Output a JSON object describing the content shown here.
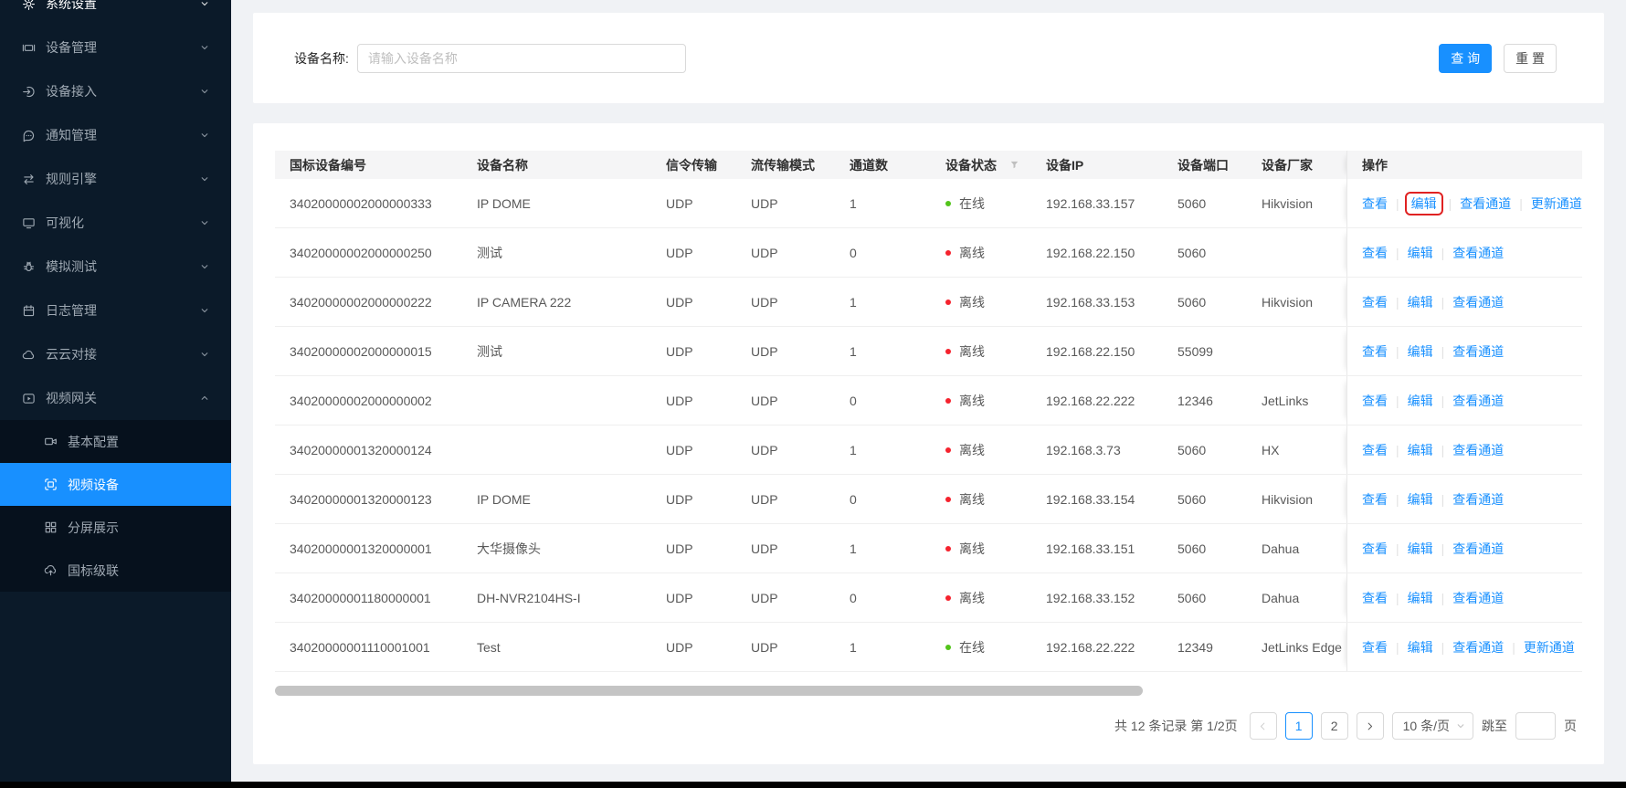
{
  "colors": {
    "accent": "#1890ff",
    "online": "#52c41a",
    "offline": "#f5222d",
    "annotation_red": "#e02222",
    "sidebar_bg": "#0b1a29",
    "submenu_bg": "#06111d"
  },
  "sidebar": {
    "items": [
      {
        "key": "system-settings",
        "label": "系统设置",
        "icon": "gear-icon"
      },
      {
        "key": "device-management",
        "label": "设备管理",
        "icon": "device-icon"
      },
      {
        "key": "device-access",
        "label": "设备接入",
        "icon": "login-icon"
      },
      {
        "key": "notify-management",
        "label": "通知管理",
        "icon": "message-icon"
      },
      {
        "key": "rule-engine",
        "label": "规则引擎",
        "icon": "swap-icon"
      },
      {
        "key": "visualization",
        "label": "可视化",
        "icon": "monitor-icon"
      },
      {
        "key": "simulation-test",
        "label": "模拟测试",
        "icon": "bug-icon"
      },
      {
        "key": "log-management",
        "label": "日志管理",
        "icon": "calendar-icon"
      },
      {
        "key": "cloud-connect",
        "label": "云云对接",
        "icon": "cloud-icon"
      },
      {
        "key": "video-gateway",
        "label": "视频网关",
        "icon": "video-icon",
        "expanded": true
      }
    ],
    "submenu": [
      {
        "key": "basic-config",
        "label": "基本配置",
        "icon": "camera-icon",
        "active": false
      },
      {
        "key": "video-device",
        "label": "视频设备",
        "icon": "frame-icon",
        "active": true
      },
      {
        "key": "split-screen",
        "label": "分屏展示",
        "icon": "split-icon",
        "active": false
      },
      {
        "key": "gb-cascade",
        "label": "国标级联",
        "icon": "cloud-upload-icon",
        "active": false
      }
    ]
  },
  "search": {
    "label": "设备名称:",
    "placeholder": "请输入设备名称",
    "query_button": "查 询",
    "reset_button": "重 置"
  },
  "table": {
    "columns": [
      "国标设备编号",
      "设备名称",
      "信令传输",
      "流传输模式",
      "通道数",
      "设备状态",
      "设备IP",
      "设备端口",
      "设备厂家",
      "操作"
    ],
    "rows": [
      {
        "id": "34020000002000000333",
        "name": "IP DOME",
        "signal": "UDP",
        "stream": "UDP",
        "channels": "1",
        "status": "在线",
        "online": true,
        "ip": "192.168.33.157",
        "port": "5060",
        "vendor": "Hikvision",
        "actions": [
          {
            "key": "view",
            "label": "查看"
          },
          {
            "key": "edit",
            "label": "编辑",
            "highlight": true
          },
          {
            "key": "view-channels",
            "label": "查看通道"
          },
          {
            "key": "update-channels",
            "label": "更新通道"
          }
        ]
      },
      {
        "id": "34020000002000000250",
        "name": "测试",
        "signal": "UDP",
        "stream": "UDP",
        "channels": "0",
        "status": "离线",
        "online": false,
        "ip": "192.168.22.150",
        "port": "5060",
        "vendor": "",
        "actions": [
          {
            "key": "view",
            "label": "查看"
          },
          {
            "key": "edit",
            "label": "编辑"
          },
          {
            "key": "view-channels",
            "label": "查看通道"
          }
        ]
      },
      {
        "id": "34020000002000000222",
        "name": "IP CAMERA 222",
        "signal": "UDP",
        "stream": "UDP",
        "channels": "1",
        "status": "离线",
        "online": false,
        "ip": "192.168.33.153",
        "port": "5060",
        "vendor": "Hikvision",
        "actions": [
          {
            "key": "view",
            "label": "查看"
          },
          {
            "key": "edit",
            "label": "编辑"
          },
          {
            "key": "view-channels",
            "label": "查看通道"
          }
        ]
      },
      {
        "id": "34020000002000000015",
        "name": "测试",
        "signal": "UDP",
        "stream": "UDP",
        "channels": "1",
        "status": "离线",
        "online": false,
        "ip": "192.168.22.150",
        "port": "55099",
        "vendor": "",
        "actions": [
          {
            "key": "view",
            "label": "查看"
          },
          {
            "key": "edit",
            "label": "编辑"
          },
          {
            "key": "view-channels",
            "label": "查看通道"
          }
        ]
      },
      {
        "id": "34020000002000000002",
        "name": "",
        "signal": "UDP",
        "stream": "UDP",
        "channels": "0",
        "status": "离线",
        "online": false,
        "ip": "192.168.22.222",
        "port": "12346",
        "vendor": "JetLinks",
        "actions": [
          {
            "key": "view",
            "label": "查看"
          },
          {
            "key": "edit",
            "label": "编辑"
          },
          {
            "key": "view-channels",
            "label": "查看通道"
          }
        ]
      },
      {
        "id": "34020000001320000124",
        "name": "",
        "signal": "UDP",
        "stream": "UDP",
        "channels": "1",
        "status": "离线",
        "online": false,
        "ip": "192.168.3.73",
        "port": "5060",
        "vendor": "HX",
        "actions": [
          {
            "key": "view",
            "label": "查看"
          },
          {
            "key": "edit",
            "label": "编辑"
          },
          {
            "key": "view-channels",
            "label": "查看通道"
          }
        ]
      },
      {
        "id": "34020000001320000123",
        "name": "IP DOME",
        "signal": "UDP",
        "stream": "UDP",
        "channels": "0",
        "status": "离线",
        "online": false,
        "ip": "192.168.33.154",
        "port": "5060",
        "vendor": "Hikvision",
        "actions": [
          {
            "key": "view",
            "label": "查看"
          },
          {
            "key": "edit",
            "label": "编辑"
          },
          {
            "key": "view-channels",
            "label": "查看通道"
          }
        ]
      },
      {
        "id": "34020000001320000001",
        "name": "大华摄像头",
        "signal": "UDP",
        "stream": "UDP",
        "channels": "1",
        "status": "离线",
        "online": false,
        "ip": "192.168.33.151",
        "port": "5060",
        "vendor": "Dahua",
        "actions": [
          {
            "key": "view",
            "label": "查看"
          },
          {
            "key": "edit",
            "label": "编辑"
          },
          {
            "key": "view-channels",
            "label": "查看通道"
          }
        ]
      },
      {
        "id": "34020000001180000001",
        "name": "DH-NVR2104HS-I",
        "signal": "UDP",
        "stream": "UDP",
        "channels": "0",
        "status": "离线",
        "online": false,
        "ip": "192.168.33.152",
        "port": "5060",
        "vendor": "Dahua",
        "actions": [
          {
            "key": "view",
            "label": "查看"
          },
          {
            "key": "edit",
            "label": "编辑"
          },
          {
            "key": "view-channels",
            "label": "查看通道"
          }
        ]
      },
      {
        "id": "34020000001110001001",
        "name": "Test",
        "signal": "UDP",
        "stream": "UDP",
        "channels": "1",
        "status": "在线",
        "online": true,
        "ip": "192.168.22.222",
        "port": "12349",
        "vendor": "JetLinks Edge",
        "actions": [
          {
            "key": "view",
            "label": "查看"
          },
          {
            "key": "edit",
            "label": "编辑"
          },
          {
            "key": "view-channels",
            "label": "查看通道"
          },
          {
            "key": "update-channels",
            "label": "更新通道"
          }
        ]
      }
    ]
  },
  "pagination": {
    "summary": "共 12 条记录 第 1/2页",
    "pages": [
      "1",
      "2"
    ],
    "current": "1",
    "page_size": "10 条/页",
    "jump_label": "跳至",
    "jump_suffix": "页"
  }
}
